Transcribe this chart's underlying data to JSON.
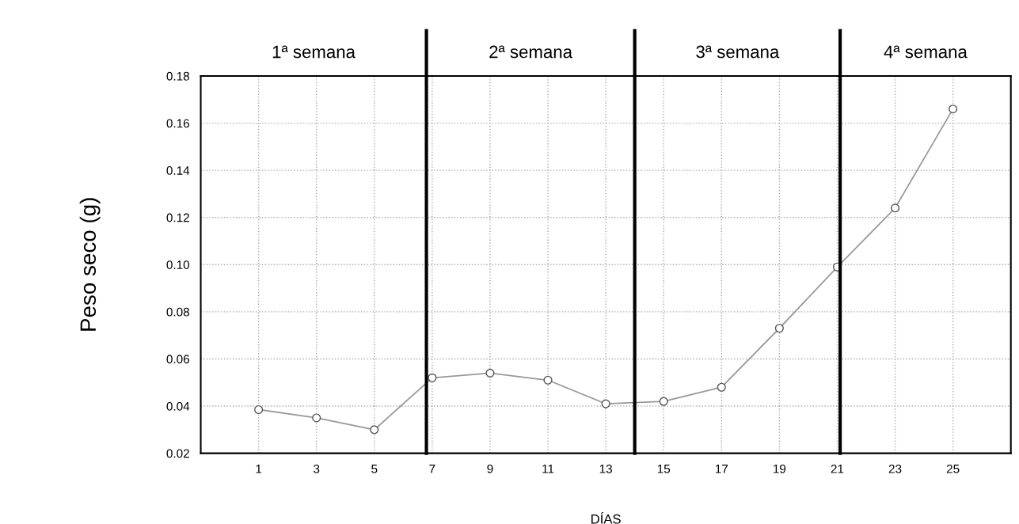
{
  "chart_data": {
    "type": "line",
    "x": [
      1,
      3,
      5,
      7,
      9,
      11,
      13,
      15,
      17,
      19,
      21,
      23,
      25
    ],
    "values": [
      0.0385,
      0.035,
      0.03,
      0.052,
      0.054,
      0.051,
      0.041,
      0.042,
      0.048,
      0.073,
      0.099,
      0.124,
      0.166
    ],
    "color": "#999999",
    "marker": "circle",
    "line_style": "solid",
    "xlabel": "DÍAS",
    "ylabel": "Peso seco (g)",
    "xlim": [
      -1,
      27
    ],
    "xticks": [
      1,
      3,
      5,
      7,
      9,
      11,
      13,
      15,
      17,
      19,
      21,
      23,
      25
    ],
    "ylim": [
      0.02,
      0.18
    ],
    "yticks": [
      {
        "value": 0.02,
        "label": "0.02"
      },
      {
        "value": 0.04,
        "label": "0.04"
      },
      {
        "value": 0.06,
        "label": "0.06"
      },
      {
        "value": 0.08,
        "label": "0.08"
      },
      {
        "value": 0.1,
        "label": "0.10"
      },
      {
        "value": 0.12,
        "label": "0.12"
      },
      {
        "value": 0.14,
        "label": "0.14"
      },
      {
        "value": 0.16,
        "label": "0.16"
      },
      {
        "value": 0.18,
        "label": "0.18"
      }
    ],
    "grid": true,
    "ref_lines": [
      {
        "axis": "x",
        "value": 6.8,
        "color": "#000000"
      },
      {
        "axis": "x",
        "value": 14,
        "color": "#000000"
      },
      {
        "axis": "x",
        "value": 21.1,
        "color": "#000000"
      }
    ],
    "annotations": [
      "1ª semana",
      "2ª semana",
      "3ª semana",
      "4ª semana"
    ]
  }
}
